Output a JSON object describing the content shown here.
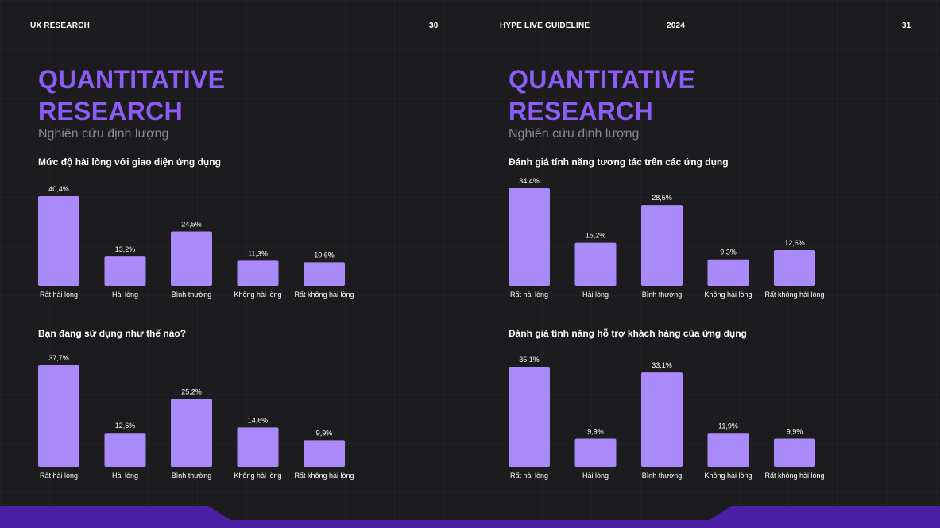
{
  "colors": {
    "background": "#1c1c1e",
    "accent": "#8c5cf5",
    "bar": "#a98af8",
    "band": "#4b1fa6",
    "subtitle": "#8a8a8e"
  },
  "left_page": {
    "header_label": "UX RESEARCH",
    "page_number": "30",
    "title_line1": "QUANTITATIVE",
    "title_line2": "RESEARCH",
    "subtitle": "Nghiên cứu định lượng"
  },
  "right_page": {
    "header_label": "HYPE LIVE GUIDELINE",
    "header_year": "2024",
    "page_number": "31",
    "title_line1": "QUANTITATIVE",
    "title_line2": "RESEARCH",
    "subtitle": "Nghiên cứu định lượng"
  },
  "chart_data": [
    {
      "type": "bar",
      "title": "Mức độ hài lòng với giao diện ứng dụng",
      "categories": [
        "Rất hài lòng",
        "Hài lòng",
        "Bình thường",
        "Không hài lòng",
        "Rất không hài lòng"
      ],
      "values": [
        40.4,
        13.2,
        24.5,
        11.3,
        10.6
      ],
      "value_labels": [
        "40,4%",
        "13,2%",
        "24,5%",
        "11,3%",
        "10,6%"
      ],
      "unit": "%",
      "ylim": [
        0,
        40.4
      ],
      "grid": false
    },
    {
      "type": "bar",
      "title": "Bạn đang sử dụng như thế nào?",
      "categories": [
        "Rất hài lòng",
        "Hài lòng",
        "Bình thường",
        "Không hài lòng",
        "Rất không hài lòng"
      ],
      "values": [
        37.7,
        12.6,
        25.2,
        14.6,
        9.9
      ],
      "value_labels": [
        "37,7%",
        "12,6%",
        "25,2%",
        "14,6%",
        "9,9%"
      ],
      "unit": "%",
      "ylim": [
        0,
        37.7
      ],
      "grid": false
    },
    {
      "type": "bar",
      "title": "Đánh giá tính năng tương tác trên các ứng dụng",
      "categories": [
        "Rất hài lòng",
        "Hài lòng",
        "Bình thường",
        "Không hài lòng",
        "Rất không hài lòng"
      ],
      "values": [
        34.4,
        15.2,
        28.5,
        9.3,
        12.6
      ],
      "value_labels": [
        "34,4%",
        "15,2%",
        "28,5%",
        "9,3%",
        "12,6%"
      ],
      "unit": "%",
      "ylim": [
        0,
        34.4
      ],
      "grid": false
    },
    {
      "type": "bar",
      "title": "Đánh giá tính năng hỗ trợ khách hàng của ứng dụng",
      "categories": [
        "Rất hài lòng",
        "Hài lòng",
        "Bình thường",
        "Không hài lòng",
        "Rất không hài lòng"
      ],
      "values": [
        35.1,
        9.9,
        33.1,
        11.9,
        9.9
      ],
      "value_labels": [
        "35,1%",
        "9,9%",
        "33,1%",
        "11,9%",
        "9,9%"
      ],
      "unit": "%",
      "ylim": [
        0,
        35.1
      ],
      "grid": false
    }
  ]
}
